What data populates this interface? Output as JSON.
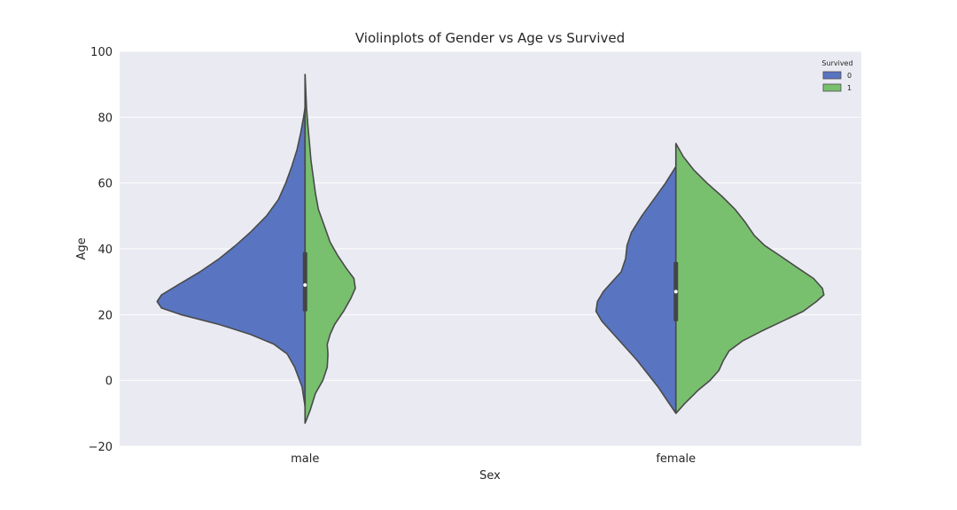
{
  "chart_data": {
    "type": "violin",
    "title": "Violinplots of Gender vs Age vs Survived",
    "xlabel": "Sex",
    "ylabel": "Age",
    "ylim": [
      -20,
      100
    ],
    "yticks": [
      -20,
      0,
      20,
      40,
      60,
      80,
      100
    ],
    "categories": [
      "male",
      "female"
    ],
    "grid": true,
    "split": true,
    "legend": {
      "title": "Survived",
      "placement": "top-right",
      "entries": [
        {
          "label": "0",
          "color": "#5975c2"
        },
        {
          "label": "1",
          "color": "#78c06e"
        }
      ]
    },
    "colors": {
      "background": "#eaeaf2",
      "grid": "#ffffff",
      "outline": "#4a4a4a",
      "box": "#454545",
      "median": "#ffffff"
    },
    "groups": [
      {
        "category": "male",
        "range": [
          -13,
          93
        ],
        "box": {
          "q1": 21,
          "median": 29,
          "q3": 39
        },
        "series": [
          {
            "name": "0",
            "range": [
              -8,
              83
            ],
            "density": [
              [
                -8,
                0.0
              ],
              [
                -2,
                0.02
              ],
              [
                4,
                0.07
              ],
              [
                8,
                0.12
              ],
              [
                11,
                0.21
              ],
              [
                14,
                0.37
              ],
              [
                17,
                0.58
              ],
              [
                20,
                0.84
              ],
              [
                22,
                0.97
              ],
              [
                24,
                1.0
              ],
              [
                26,
                0.97
              ],
              [
                29,
                0.86
              ],
              [
                33,
                0.71
              ],
              [
                37,
                0.58
              ],
              [
                41,
                0.47
              ],
              [
                45,
                0.37
              ],
              [
                50,
                0.26
              ],
              [
                55,
                0.18
              ],
              [
                60,
                0.13
              ],
              [
                65,
                0.09
              ],
              [
                70,
                0.055
              ],
              [
                75,
                0.03
              ],
              [
                80,
                0.01
              ],
              [
                83,
                0.0
              ]
            ]
          },
          {
            "name": "1",
            "range": [
              -13,
              93
            ],
            "density": [
              [
                -13,
                0.0
              ],
              [
                -9,
                0.035
              ],
              [
                -4,
                0.07
              ],
              [
                0,
                0.12
              ],
              [
                4,
                0.15
              ],
              [
                8,
                0.155
              ],
              [
                11,
                0.15
              ],
              [
                14,
                0.17
              ],
              [
                17,
                0.2
              ],
              [
                21,
                0.26
              ],
              [
                25,
                0.31
              ],
              [
                28,
                0.34
              ],
              [
                31,
                0.33
              ],
              [
                34,
                0.28
              ],
              [
                38,
                0.22
              ],
              [
                42,
                0.17
              ],
              [
                47,
                0.13
              ],
              [
                52,
                0.09
              ],
              [
                57,
                0.07
              ],
              [
                62,
                0.055
              ],
              [
                67,
                0.04
              ],
              [
                72,
                0.03
              ],
              [
                77,
                0.02
              ],
              [
                83,
                0.01
              ],
              [
                88,
                0.005
              ],
              [
                93,
                0.0
              ]
            ]
          }
        ]
      },
      {
        "category": "female",
        "range": [
          -10,
          72
        ],
        "box": {
          "q1": 18,
          "median": 27,
          "q3": 36
        },
        "series": [
          {
            "name": "0",
            "range": [
              -10,
              65
            ],
            "density": [
              [
                -10,
                0.0
              ],
              [
                -6,
                0.06
              ],
              [
                -2,
                0.12
              ],
              [
                2,
                0.19
              ],
              [
                6,
                0.26
              ],
              [
                10,
                0.34
              ],
              [
                14,
                0.42
              ],
              [
                18,
                0.5
              ],
              [
                21,
                0.54
              ],
              [
                24,
                0.53
              ],
              [
                27,
                0.49
              ],
              [
                30,
                0.43
              ],
              [
                33,
                0.37
              ],
              [
                37,
                0.34
              ],
              [
                41,
                0.33
              ],
              [
                45,
                0.3
              ],
              [
                50,
                0.23
              ],
              [
                55,
                0.15
              ],
              [
                60,
                0.07
              ],
              [
                65,
                0.0
              ]
            ]
          },
          {
            "name": "1",
            "range": [
              -10,
              72
            ],
            "density": [
              [
                -10,
                0.0
              ],
              [
                -7,
                0.06
              ],
              [
                -3,
                0.15
              ],
              [
                0,
                0.23
              ],
              [
                3,
                0.29
              ],
              [
                6,
                0.32
              ],
              [
                9,
                0.36
              ],
              [
                12,
                0.45
              ],
              [
                15,
                0.58
              ],
              [
                18,
                0.72
              ],
              [
                21,
                0.86
              ],
              [
                24,
                0.95
              ],
              [
                26,
                1.0
              ],
              [
                28,
                0.99
              ],
              [
                31,
                0.93
              ],
              [
                34,
                0.83
              ],
              [
                38,
                0.7
              ],
              [
                41,
                0.6
              ],
              [
                44,
                0.53
              ],
              [
                48,
                0.47
              ],
              [
                52,
                0.4
              ],
              [
                56,
                0.31
              ],
              [
                60,
                0.21
              ],
              [
                64,
                0.12
              ],
              [
                68,
                0.05
              ],
              [
                72,
                0.0
              ]
            ]
          }
        ]
      }
    ]
  }
}
